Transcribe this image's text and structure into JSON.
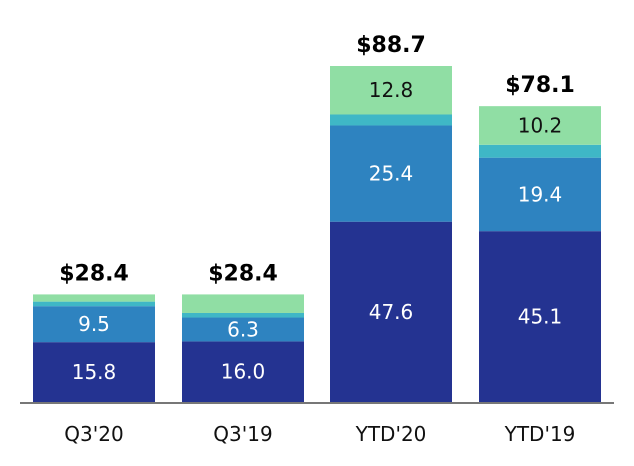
{
  "chart_data": {
    "type": "bar",
    "stacked": true,
    "categories": [
      "Q3'20",
      "Q3'19",
      "YTD'20",
      "YTD'19"
    ],
    "totals": [
      "$28.4",
      "$28.4",
      "$88.7",
      "$78.1"
    ],
    "total_values": [
      28.4,
      28.4,
      88.7,
      78.1
    ],
    "series": [
      {
        "values": [
          15.8,
          16.0,
          47.6,
          45.1
        ],
        "labels": [
          "15.8",
          "16.0",
          "47.6",
          "45.1"
        ],
        "color": "#243391"
      },
      {
        "values": [
          9.5,
          6.3,
          25.4,
          19.4
        ],
        "labels": [
          "9.5",
          "6.3",
          "25.4",
          "19.4"
        ],
        "color": "#2e83c0"
      },
      {
        "values": [
          1.2,
          1.2,
          2.9,
          3.4
        ],
        "labels": [
          "",
          "",
          "",
          ""
        ],
        "color": "#3fb7c6"
      },
      {
        "values": [
          1.9,
          4.9,
          12.8,
          10.2
        ],
        "labels": [
          "",
          "",
          "12.8",
          "10.2"
        ],
        "color": "#90dea4"
      }
    ],
    "ylim": [
      0,
      88.7
    ],
    "grid": false,
    "legend": "none",
    "title": "",
    "xlabel": "",
    "ylabel": ""
  }
}
